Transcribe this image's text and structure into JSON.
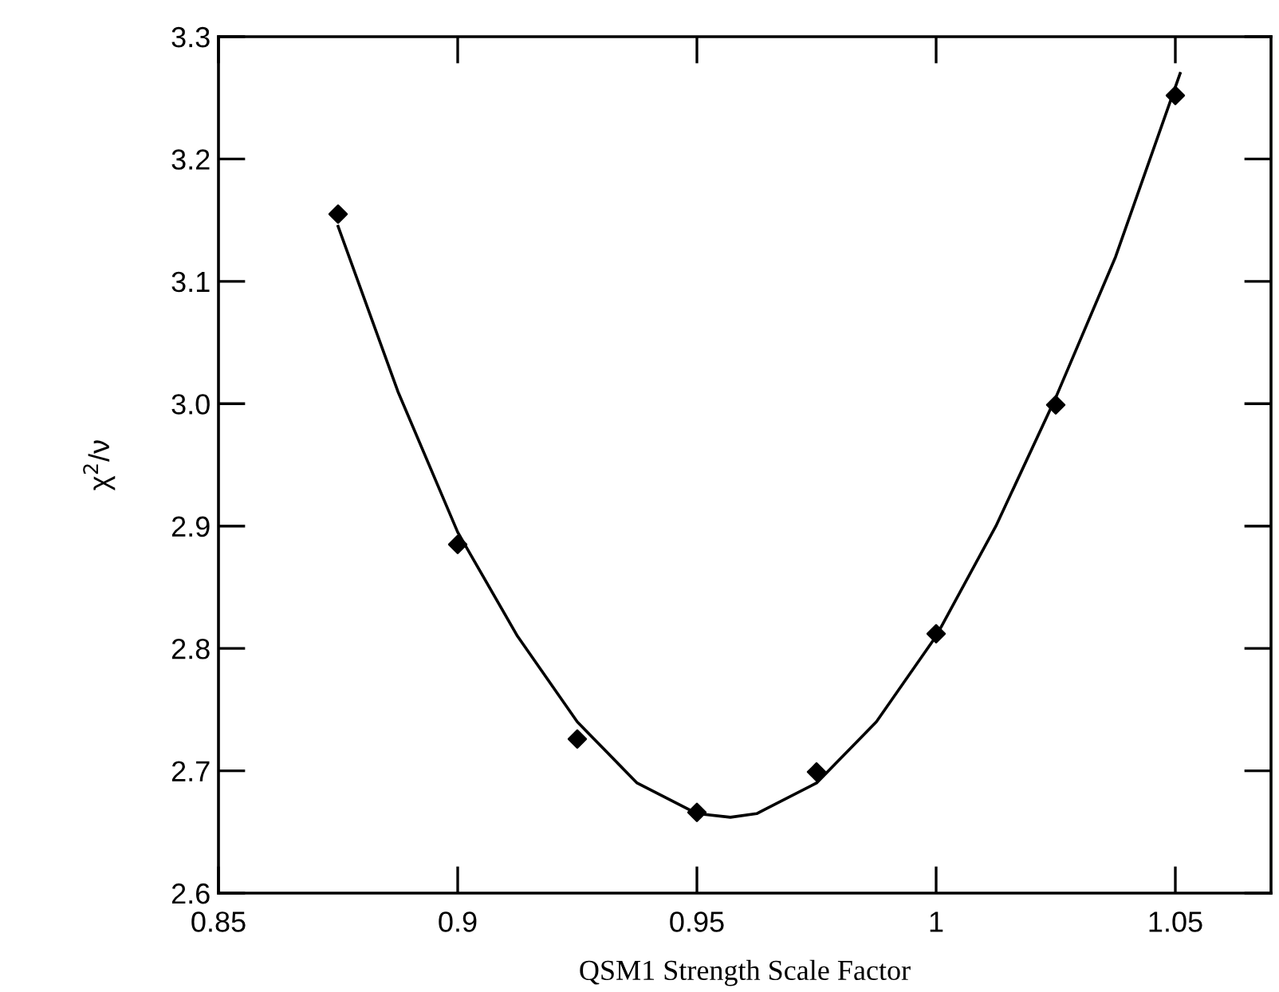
{
  "chart_data": {
    "type": "scatter",
    "xlabel": "QSM1 Strength Scale Factor",
    "ylabel": "χ$^{2}$/ν",
    "x": [
      0.875,
      0.9,
      0.925,
      0.95,
      0.975,
      1.0,
      1.025,
      1.05
    ],
    "series": [
      {
        "color": "#000000",
        "marker": "diamond",
        "values": [
          3.155,
          2.885,
          2.726,
          2.666,
          2.699,
          2.812,
          2.999,
          3.252
        ]
      },
      {
        "type": "line",
        "color": "#000000",
        "marker": "none",
        "line_style": "solid",
        "x": [
          0.875,
          0.8875,
          0.9,
          0.9125,
          0.925,
          0.9375,
          0.95,
          0.957,
          0.9625,
          0.975,
          0.9875,
          1.0,
          1.0125,
          1.025,
          1.0375,
          1.051
        ],
        "values": [
          3.145,
          3.01,
          2.895,
          2.81,
          2.74,
          2.69,
          2.665,
          2.662,
          2.665,
          2.69,
          2.74,
          2.81,
          2.9,
          3.005,
          3.12,
          3.27
        ]
      }
    ],
    "xlim": [
      0.85,
      1.07
    ],
    "xticks": [
      {
        "value": 0.85,
        "label": "0.85"
      },
      {
        "value": 0.9,
        "label": "0.9"
      },
      {
        "value": 0.95,
        "label": "0.95"
      },
      {
        "value": 1.0,
        "label": "1"
      },
      {
        "value": 1.05,
        "label": "1.05"
      }
    ],
    "ylim": [
      2.6,
      3.3
    ],
    "yticks": [
      {
        "value": 2.6,
        "label": "2.6"
      },
      {
        "value": 2.7,
        "label": "2.7"
      },
      {
        "value": 2.8,
        "label": "2.8"
      },
      {
        "value": 2.9,
        "label": "2.9"
      },
      {
        "value": 3.0,
        "label": "3.0"
      },
      {
        "value": 3.1,
        "label": "3.1"
      },
      {
        "value": 3.2,
        "label": "3.2"
      },
      {
        "value": 3.3,
        "label": "3.3"
      }
    ],
    "grid": false,
    "legend": false
  }
}
